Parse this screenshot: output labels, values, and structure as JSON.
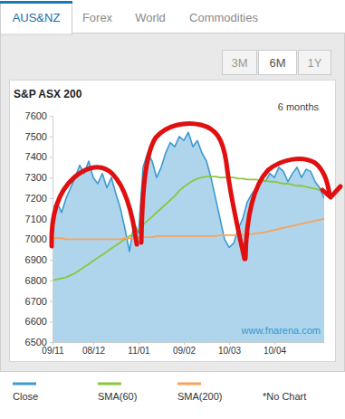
{
  "tabs": [
    {
      "label": "AUS&NZ",
      "active": true
    },
    {
      "label": "Forex",
      "active": false
    },
    {
      "label": "World",
      "active": false
    },
    {
      "label": "Commodities",
      "active": false
    }
  ],
  "range_buttons": [
    {
      "label": "3M",
      "active": false
    },
    {
      "label": "6M",
      "active": true
    },
    {
      "label": "1Y",
      "active": false
    }
  ],
  "chart_data": {
    "type": "line",
    "title": "S&P ASX 200",
    "subtitle": "6 months",
    "annotations": [
      "www.fnarena.com",
      "*No Chart"
    ],
    "categories": [
      "09/11",
      null,
      null,
      null,
      null,
      null,
      null,
      null,
      null,
      "08/12",
      null,
      null,
      null,
      null,
      null,
      null,
      null,
      null,
      null,
      "11/01",
      null,
      null,
      null,
      null,
      null,
      null,
      null,
      null,
      null,
      "09/02",
      null,
      null,
      null,
      null,
      null,
      null,
      null,
      null,
      null,
      "10/03",
      null,
      null,
      null,
      null,
      null,
      null,
      null,
      null,
      null,
      "10/04",
      null,
      null,
      null,
      null,
      null,
      null,
      null,
      null,
      null,
      null,
      null
    ],
    "series": [
      {
        "name": "Close",
        "color": "#3d9ad1",
        "type": "area",
        "values": [
          7150,
          7180,
          7130,
          7200,
          7250,
          7300,
          7360,
          7320,
          7380,
          7300,
          7270,
          7320,
          7250,
          7300,
          7220,
          7150,
          7050,
          6940,
          7080,
          7030,
          7350,
          7420,
          7380,
          7300,
          7350,
          7420,
          7470,
          7450,
          7500,
          7480,
          7520,
          7450,
          7480,
          7420,
          7380,
          7300,
          7200,
          7100,
          7000,
          6960,
          6980,
          7050,
          7100,
          7180,
          7220,
          7250,
          7300,
          7280,
          7320,
          7300,
          7350,
          7330,
          7280,
          7320,
          7350,
          7300,
          7340,
          7330,
          7280,
          7250,
          7200
        ]
      },
      {
        "name": "SMA(60)",
        "color": "#8cc63f",
        "type": "line",
        "values": [
          6800,
          6805,
          6810,
          6815,
          6825,
          6835,
          6850,
          6865,
          6880,
          6895,
          6910,
          6925,
          6940,
          6955,
          6970,
          6985,
          7000,
          7015,
          7030,
          7050,
          7070,
          7090,
          7110,
          7130,
          7150,
          7170,
          7190,
          7210,
          7235,
          7255,
          7270,
          7285,
          7295,
          7300,
          7305,
          7305,
          7305,
          7300,
          7300,
          7300,
          7300,
          7295,
          7295,
          7290,
          7290,
          7290,
          7285,
          7285,
          7280,
          7280,
          7275,
          7270,
          7270,
          7265,
          7260,
          7260,
          7255,
          7250,
          7245,
          7240,
          7235
        ]
      },
      {
        "name": "SMA(200)",
        "color": "#f7a35c",
        "type": "line",
        "values": [
          7005,
          7005,
          7005,
          7000,
          7000,
          7000,
          7000,
          7000,
          7000,
          7000,
          7000,
          7000,
          7000,
          7000,
          7000,
          7000,
          7005,
          7005,
          7005,
          7010,
          7010,
          7010,
          7010,
          7015,
          7015,
          7015,
          7015,
          7015,
          7015,
          7015,
          7015,
          7015,
          7015,
          7015,
          7015,
          7015,
          7015,
          7020,
          7020,
          7020,
          7020,
          7020,
          7020,
          7025,
          7025,
          7030,
          7030,
          7035,
          7040,
          7045,
          7050,
          7055,
          7060,
          7065,
          7070,
          7075,
          7080,
          7085,
          7090,
          7095,
          7100
        ]
      }
    ],
    "ylim": [
      6500,
      7600
    ],
    "yticks": [
      6500,
      6600,
      6700,
      6800,
      6900,
      7000,
      7100,
      7200,
      7300,
      7400,
      7500,
      7600
    ],
    "grid": false,
    "legend": "bottom"
  }
}
